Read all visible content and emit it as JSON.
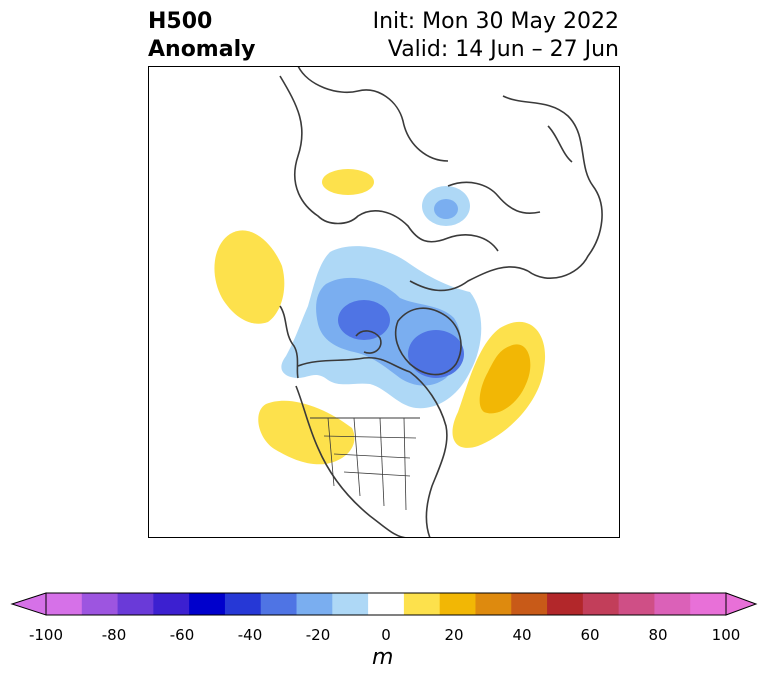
{
  "title": {
    "left_line1": "H500",
    "left_line2": "Anomaly",
    "right_line1": "Init: Mon 30 May 2022",
    "right_line2": "Valid: 14 Jun – 27 Jun"
  },
  "colorbar": {
    "units": "m",
    "ticks": [
      "-100",
      "-80",
      "-60",
      "-40",
      "-20",
      "0",
      "20",
      "40",
      "60",
      "80",
      "100"
    ],
    "levels": [
      -100,
      -90,
      -80,
      -70,
      -60,
      -50,
      -40,
      -30,
      -20,
      -10,
      10,
      20,
      30,
      40,
      50,
      60,
      70,
      80,
      90,
      100
    ],
    "colors": [
      "#d671e8",
      "#9d55e0",
      "#6a3ad8",
      "#3c20d0",
      "#0000cc",
      "#2638d6",
      "#4f74e4",
      "#7aaef0",
      "#aed8f6",
      "#ffffff",
      "#fde14c",
      "#f2b705",
      "#de8a0e",
      "#c85a18",
      "#b2272a",
      "#c23e5a",
      "#cf4f86",
      "#db61b8",
      "#e870d8"
    ]
  },
  "anomalies": [
    {
      "label": "negative-center-arctic",
      "sign": "negative"
    },
    {
      "label": "negative-center-baffin",
      "sign": "negative"
    },
    {
      "label": "negative-center-scandinavia",
      "sign": "negative"
    },
    {
      "label": "positive-center-north-atlantic",
      "sign": "positive"
    },
    {
      "label": "positive-center-western-us",
      "sign": "positive"
    },
    {
      "label": "positive-center-north-pacific",
      "sign": "positive"
    },
    {
      "label": "positive-center-africa",
      "sign": "positive"
    }
  ]
}
